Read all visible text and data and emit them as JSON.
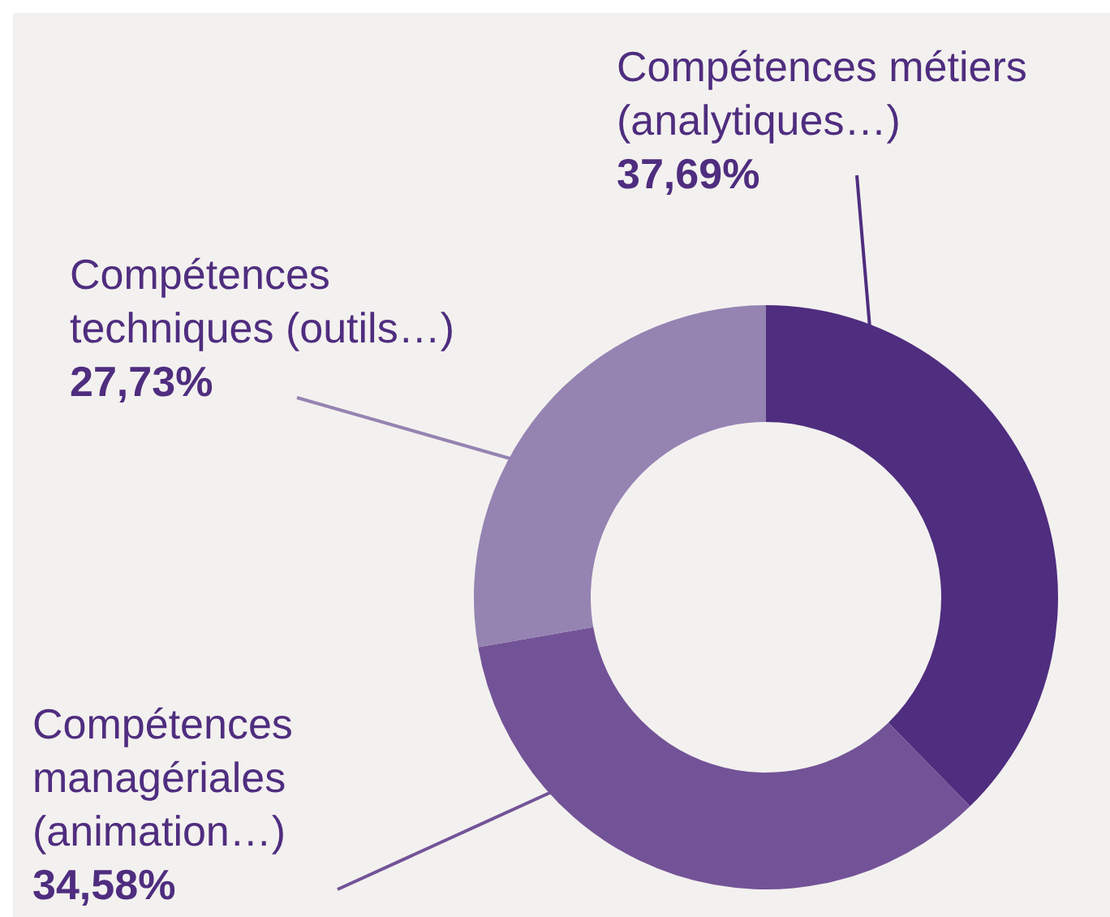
{
  "chart_data": {
    "type": "donut",
    "categories": [
      "Compétences métiers (analytiques…)",
      "Compétences managériales (animation…)",
      "Compétences techniques (outils…)"
    ],
    "values": [
      37.69,
      34.58,
      27.73
    ],
    "value_labels": [
      "37,69%",
      "34,58%",
      "27,73%"
    ],
    "colors": [
      "#4f2d7f",
      "#735397",
      "#9583b2"
    ],
    "legend": false
  }
}
